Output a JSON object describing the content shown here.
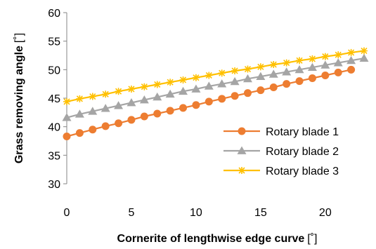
{
  "chart_data": {
    "type": "line",
    "xlabel": "Cornerite of lengthwise edge curve",
    "xlabel_unit": "[˚]",
    "ylabel": "Grass removing angle",
    "ylabel_unit": "[˚]",
    "xlim": [
      0,
      23
    ],
    "ylim": [
      30,
      60
    ],
    "x_ticks": [
      0,
      5,
      10,
      15,
      20
    ],
    "y_ticks": [
      30,
      35,
      40,
      45,
      50,
      55,
      60
    ],
    "grid": false,
    "legend_position": "right",
    "x": [
      0,
      1,
      2,
      3,
      4,
      5,
      6,
      7,
      8,
      9,
      10,
      11,
      12,
      13,
      14,
      15,
      16,
      17,
      18,
      19,
      20,
      21,
      22,
      23
    ],
    "series": [
      {
        "name": "Rotary blade 1",
        "color": "#ED7D31",
        "marker": "circle",
        "x": [
          0,
          1,
          2,
          3,
          4,
          5,
          6,
          7,
          8,
          9,
          10,
          11,
          12,
          13,
          14,
          15,
          16,
          17,
          18,
          19,
          20,
          21,
          22
        ],
        "values": [
          38.3,
          38.9,
          39.5,
          40.1,
          40.6,
          41.2,
          41.8,
          42.3,
          42.8,
          43.3,
          43.8,
          44.4,
          44.9,
          45.4,
          45.9,
          46.4,
          46.9,
          47.5,
          48.0,
          48.5,
          49.0,
          49.5,
          50.0
        ]
      },
      {
        "name": "Rotary blade 2",
        "color": "#A5A5A5",
        "marker": "triangle",
        "x": [
          0,
          1,
          2,
          3,
          4,
          5,
          6,
          7,
          8,
          9,
          10,
          11,
          12,
          13,
          14,
          15,
          16,
          17,
          18,
          19,
          20,
          21,
          22,
          23
        ],
        "values": [
          41.6,
          42.2,
          42.7,
          43.2,
          43.7,
          44.2,
          44.7,
          45.2,
          45.7,
          46.2,
          46.6,
          47.1,
          47.5,
          47.9,
          48.4,
          48.8,
          49.2,
          49.6,
          50.0,
          50.4,
          50.8,
          51.2,
          51.6,
          52.0
        ]
      },
      {
        "name": "Rotary blade 3",
        "color": "#FFC000",
        "marker": "star",
        "x": [
          0,
          1,
          2,
          3,
          4,
          5,
          6,
          7,
          8,
          9,
          10,
          11,
          12,
          13,
          14,
          15,
          16,
          17,
          18,
          19,
          20,
          21,
          22,
          23
        ],
        "values": [
          44.4,
          44.9,
          45.3,
          45.7,
          46.2,
          46.6,
          47.0,
          47.4,
          47.8,
          48.2,
          48.6,
          49.0,
          49.4,
          49.8,
          50.1,
          50.5,
          50.9,
          51.2,
          51.6,
          51.9,
          52.3,
          52.6,
          53.0,
          53.3
        ]
      }
    ]
  }
}
